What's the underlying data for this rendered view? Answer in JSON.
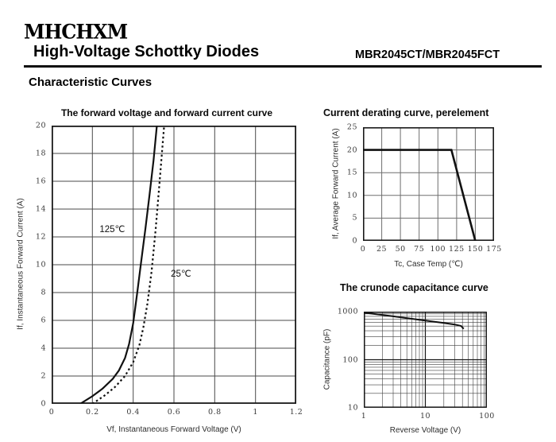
{
  "header": {
    "logo": "MHCHXM",
    "title": "High-Voltage Schottky Diodes",
    "part_number": "MBR2045CT/MBR2045FCT",
    "section_title": "Characteristic Curves"
  },
  "colors": {
    "ink": "#000000",
    "curve": "#111111",
    "grid": "#4a4a4a",
    "background": "#ffffff"
  },
  "chart_data": [
    {
      "id": "forward",
      "type": "line",
      "title": "The forward voltage and forward current curve",
      "xlabel": "Vf, Instantaneous Forward Voltage (V)",
      "ylabel": "If, Instantaneous Forward Current (A)",
      "xlim": [
        0,
        1.2
      ],
      "ylim": [
        0,
        20
      ],
      "grid": "on",
      "xticks": {
        "values": [
          0,
          0.2,
          0.4,
          0.6,
          0.8,
          1,
          1.2
        ],
        "labels": [
          "0",
          "0.2",
          "0.4",
          "0.6",
          "0.8",
          "1",
          "1.2"
        ]
      },
      "yticks": {
        "values": [
          0,
          2,
          4,
          6,
          8,
          10,
          12,
          14,
          16,
          18,
          20
        ],
        "labels": [
          "0",
          "2",
          "4",
          "6",
          "8",
          "10",
          "12",
          "14",
          "16",
          "18",
          "20"
        ]
      },
      "series": [
        {
          "name": "125℃",
          "style": "solid",
          "points": [
            [
              0.14,
              0
            ],
            [
              0.2,
              0.55
            ],
            [
              0.25,
              1.1
            ],
            [
              0.3,
              1.8
            ],
            [
              0.33,
              2.4
            ],
            [
              0.36,
              3.3
            ],
            [
              0.38,
              4.3
            ],
            [
              0.4,
              5.8
            ],
            [
              0.42,
              8.0
            ],
            [
              0.44,
              10.3
            ],
            [
              0.46,
              12.6
            ],
            [
              0.48,
              15.0
            ],
            [
              0.5,
              17.5
            ],
            [
              0.52,
              20.6
            ]
          ]
        },
        {
          "name": "25℃",
          "style": "dashed",
          "points": [
            [
              0.2,
              0
            ],
            [
              0.26,
              0.6
            ],
            [
              0.31,
              1.2
            ],
            [
              0.36,
              2.0
            ],
            [
              0.4,
              3.0
            ],
            [
              0.43,
              4.2
            ],
            [
              0.45,
              5.5
            ],
            [
              0.47,
              7.2
            ],
            [
              0.49,
              9.5
            ],
            [
              0.51,
              12.5
            ],
            [
              0.53,
              16.0
            ],
            [
              0.555,
              20.6
            ]
          ]
        }
      ],
      "annotations": [
        {
          "series": 0,
          "x": 0.235,
          "y": 12.6
        },
        {
          "series": 1,
          "x": 0.585,
          "y": 9.4
        }
      ]
    },
    {
      "id": "derating",
      "type": "line",
      "title": "Current derating curve, perelement",
      "xlabel": "Tc, Case Temp (℃)",
      "ylabel": "If, Average Forward Current (A)",
      "xlim": [
        0,
        175
      ],
      "ylim": [
        0,
        25
      ],
      "grid": "on",
      "xticks": {
        "values": [
          0,
          25,
          50,
          75,
          100,
          125,
          150,
          175
        ],
        "labels": [
          "0",
          "25",
          "50",
          "75",
          "100",
          "125",
          "150",
          "175"
        ]
      },
      "yticks": {
        "values": [
          0,
          5,
          10,
          15,
          20,
          25
        ],
        "labels": [
          "0",
          "5",
          "10",
          "15",
          "20",
          "25"
        ]
      },
      "series": [
        {
          "style": "solid",
          "points": [
            [
              0,
              20
            ],
            [
              118,
              20
            ],
            [
              150,
              0
            ]
          ]
        }
      ],
      "annotations": []
    },
    {
      "id": "capacitance",
      "type": "line",
      "title": "The crunode capacitance curve",
      "xlabel": "Reverse Voltage (V)",
      "ylabel": "Capacitance (pF)",
      "xscale": "log",
      "yscale": "log",
      "xlim": [
        1,
        100
      ],
      "ylim": [
        10,
        1000
      ],
      "grid": "on",
      "xticks": {
        "values": [
          1,
          10,
          100
        ],
        "labels": [
          "1",
          "10",
          "100"
        ]
      },
      "yticks": {
        "values": [
          10,
          100,
          1000
        ],
        "labels": [
          "10",
          "100",
          "1000"
        ]
      },
      "series": [
        {
          "style": "solid",
          "points": [
            [
              1,
              950
            ],
            [
              3,
              800
            ],
            [
              10,
              650
            ],
            [
              20,
              580
            ],
            [
              30,
              540
            ],
            [
              38,
              505
            ],
            [
              42,
              440
            ]
          ]
        }
      ],
      "annotations": []
    }
  ]
}
